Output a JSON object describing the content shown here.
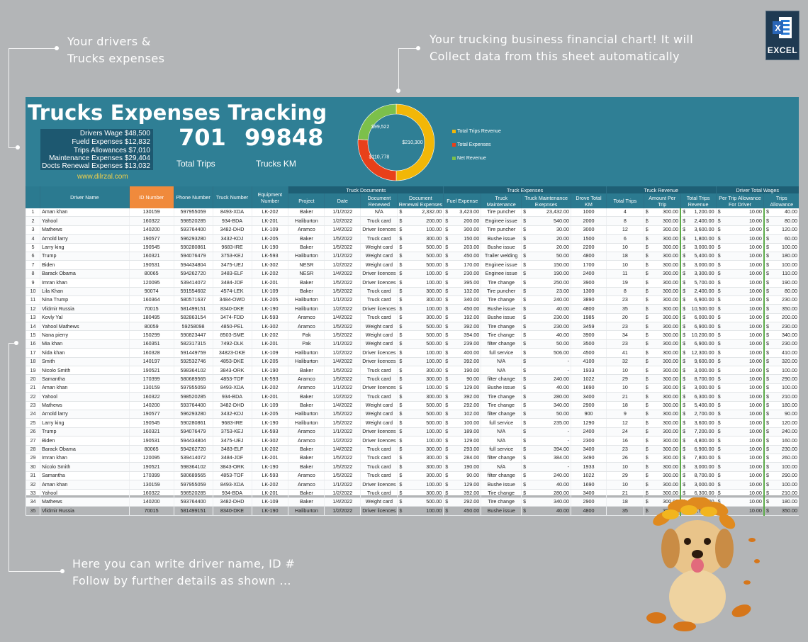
{
  "callouts": {
    "top_left": [
      "Your drivers &",
      "Trucks expenses"
    ],
    "top_middle": [
      "Your trucking business financial chart! It will",
      "Collect data from this sheet automatically"
    ],
    "bottom": [
      "Here you can write driver name, ID #",
      "Follow by further details as shown ..."
    ]
  },
  "excel_logo": {
    "label": "EXCEL"
  },
  "banner": {
    "title": "Trucks Expenses Tracking",
    "summary": [
      {
        "label": "Drivers Wage",
        "value": "$48,500"
      },
      {
        "label": "Fueld Expenses",
        "value": "$12,832"
      },
      {
        "label": "Trips Allowances",
        "value": "$7,010"
      },
      {
        "label": "Maintenance Expenses",
        "value": "$29,404"
      },
      {
        "label": "Docts Renewal Expenses",
        "value": "$13,032"
      }
    ],
    "site": "www.dilrzal.com",
    "total_trips": "701",
    "total_trips_label": "Total Trips",
    "trucks_km": "99848",
    "trucks_km_label": "Trucks KM"
  },
  "chart_data": {
    "type": "pie",
    "donut": true,
    "categories": [
      "Total Trips Revenue",
      "Total Expenses",
      "Net Revenue"
    ],
    "values": [
      210300,
      110778,
      99522
    ],
    "data_labels": [
      "$210,300",
      "$110,778",
      "$99,522"
    ],
    "colors": [
      "#f2b707",
      "#e8401a",
      "#7cc04b"
    ],
    "legend_position": "right"
  },
  "table": {
    "groups": [
      "Truck Documents",
      "Truck Expenses",
      "Truck Revenue",
      "Driver Total Wages"
    ],
    "headers": [
      "",
      "Driver Name",
      "ID Number",
      "Phone Number",
      "Truck Number",
      "Equipment Number",
      "Project",
      "Date",
      "Document Renewed",
      "Document Renewal Expenses",
      "Fuel Expense",
      "Truck Maintenance",
      "Truck Maintenance Exepnses",
      "Drove Total KM",
      "Total Trips",
      "Amount Per Trip",
      "Total Trips Revenue",
      "Per Trip Allowance For Driver",
      "Trips Allowance"
    ],
    "rows": [
      [
        "1",
        "Aman khan",
        "130159",
        "597955059",
        "8493-XDA",
        "LK-202",
        "Baker",
        "1/1/2022",
        "N/A",
        "2,332.00",
        "3,423.00",
        "Tire puncher",
        "23,432.00",
        "1000",
        "4",
        "300.00",
        "1,200.00",
        "10.00",
        "40.00"
      ],
      [
        "2",
        "Yahool",
        "160322",
        "598520285",
        "934-BDA",
        "LK-201",
        "Haliburton",
        "1/2/2022",
        "Truck card",
        "200.00",
        "200.00",
        "Enginee issue",
        "540.00",
        "2000",
        "8",
        "300.00",
        "2,400.00",
        "10.00",
        "80.00"
      ],
      [
        "3",
        "Mathews",
        "140200",
        "593764400",
        "3482-DHD",
        "LK-109",
        "Aramco",
        "1/4/2022",
        "Driver licences",
        "100.00",
        "300.00",
        "Tire puncher",
        "30.00",
        "3000",
        "12",
        "300.00",
        "3,600.00",
        "10.00",
        "120.00"
      ],
      [
        "4",
        "Arnold larry",
        "190577",
        "596293280",
        "3432-KDJ",
        "LK-205",
        "Baker",
        "1/5/2022",
        "Truck card",
        "300.00",
        "150.00",
        "Bushe issue",
        "20.00",
        "1500",
        "6",
        "300.00",
        "1,800.00",
        "10.00",
        "60.00"
      ],
      [
        "5",
        "Larry king",
        "190545",
        "590280861",
        "9683-IRE",
        "LK-190",
        "Baker",
        "1/5/2022",
        "Weight card",
        "500.00",
        "203.00",
        "Bushe issue",
        "20.00",
        "2200",
        "10",
        "300.00",
        "3,000.00",
        "10.00",
        "100.00"
      ],
      [
        "6",
        "Trump",
        "160321",
        "594076479",
        "3753-KEJ",
        "LK-593",
        "Haliburton",
        "1/1/2022",
        "Weight card",
        "500.00",
        "450.00",
        "Trailer welding",
        "50.00",
        "4800",
        "18",
        "300.00",
        "5,400.00",
        "10.00",
        "180.00"
      ],
      [
        "7",
        "Biden",
        "190531",
        "594434804",
        "3475-UEJ",
        "LK-302",
        "NESR",
        "1/2/2022",
        "Weight card",
        "500.00",
        "170.00",
        "Enginee issue",
        "150.00",
        "1700",
        "10",
        "300.00",
        "3,000.00",
        "10.00",
        "100.00"
      ],
      [
        "8",
        "Barack Obama",
        "80065",
        "594262720",
        "3483-ELF",
        "LK-202",
        "NESR",
        "1/4/2022",
        "Driver licences",
        "100.00",
        "230.00",
        "Enginee issue",
        "190.00",
        "2400",
        "11",
        "300.00",
        "3,300.00",
        "10.00",
        "110.00"
      ],
      [
        "9",
        "Imran khan",
        "120095",
        "539414072",
        "3484-JDF",
        "LK-201",
        "Baker",
        "1/5/2022",
        "Driver licences",
        "100.00",
        "395.00",
        "Tire change",
        "250.00",
        "3900",
        "19",
        "300.00",
        "5,700.00",
        "10.00",
        "190.00"
      ],
      [
        "10",
        "Lila Khan",
        "90074",
        "591554602",
        "4574-LEK",
        "LK-109",
        "Baker",
        "1/5/2022",
        "Truck card",
        "300.00",
        "132.00",
        "Tire puncher",
        "23.00",
        "1300",
        "8",
        "300.00",
        "2,400.00",
        "10.00",
        "80.00"
      ],
      [
        "11",
        "Nina Trump",
        "160364",
        "580571637",
        "3484-OWD",
        "LK-205",
        "Haliburton",
        "1/1/2022",
        "Truck card",
        "300.00",
        "340.00",
        "Tire change",
        "240.00",
        "3890",
        "23",
        "300.00",
        "6,900.00",
        "10.00",
        "230.00"
      ],
      [
        "12",
        "Vlidmir Russia",
        "70015",
        "581499151",
        "8340-DKE",
        "LK-190",
        "Haliburton",
        "1/2/2022",
        "Driver licences",
        "100.00",
        "450.00",
        "Bushe issue",
        "40.00",
        "4800",
        "35",
        "300.00",
        "10,500.00",
        "10.00",
        "350.00"
      ],
      [
        "13",
        "Kovly Yal",
        "180495",
        "582863154",
        "3474-FDD",
        "LK-593",
        "Aramco",
        "1/4/2022",
        "Truck card",
        "300.00",
        "192.00",
        "Bushe issue",
        "230.00",
        "1985",
        "20",
        "300.00",
        "6,000.00",
        "10.00",
        "200.00"
      ],
      [
        "14",
        "Yahool Mathews",
        "80059",
        "59258098",
        "4850-PEL",
        "LK-302",
        "Aramco",
        "1/5/2022",
        "Weight card",
        "500.00",
        "392.00",
        "Tire change",
        "230.00",
        "3459",
        "23",
        "300.00",
        "6,900.00",
        "10.00",
        "230.00"
      ],
      [
        "15",
        "Nana pierry",
        "150299",
        "590823447",
        "8503-SME",
        "LK-202",
        "Pak",
        "1/5/2022",
        "Weight card",
        "500.00",
        "394.00",
        "Tire change",
        "40.00",
        "3900",
        "34",
        "300.00",
        "10,200.00",
        "10.00",
        "340.00"
      ],
      [
        "16",
        "Mia khan",
        "160351",
        "582317315",
        "7492-DLK",
        "LK-201",
        "Pak",
        "1/1/2022",
        "Weight card",
        "500.00",
        "239.00",
        "filter change",
        "50.00",
        "3500",
        "23",
        "300.00",
        "6,900.00",
        "10.00",
        "230.00"
      ],
      [
        "17",
        "Nida khan",
        "160328",
        "591449759",
        "34823-DKE",
        "LK-109",
        "Haliburton",
        "1/2/2022",
        "Driver licences",
        "100.00",
        "400.00",
        "full service",
        "506.00",
        "4500",
        "41",
        "300.00",
        "12,300.00",
        "10.00",
        "410.00"
      ],
      [
        "18",
        "Smith",
        "140197",
        "592532746",
        "4853-DKE",
        "LK-205",
        "Haliburton",
        "1/4/2022",
        "Driver licences",
        "100.00",
        "392.00",
        "N/A",
        "-",
        "4100",
        "32",
        "300.00",
        "9,600.00",
        "10.00",
        "320.00"
      ],
      [
        "19",
        "Nicolo Smith",
        "190521",
        "598364102",
        "3843-ORK",
        "LK-190",
        "Baker",
        "1/5/2022",
        "Truck card",
        "300.00",
        "190.00",
        "N/A",
        "-",
        "1933",
        "10",
        "300.00",
        "3,000.00",
        "10.00",
        "100.00"
      ],
      [
        "20",
        "Samantha",
        "170399",
        "580689565",
        "4853-TOF",
        "LK-593",
        "Aramco",
        "1/5/2022",
        "Truck card",
        "300.00",
        "90.00",
        "filter change",
        "240.00",
        "1022",
        "29",
        "300.00",
        "8,700.00",
        "10.00",
        "290.00"
      ],
      [
        "21",
        "Aman khan",
        "130159",
        "597955059",
        "8493-XDA",
        "LK-202",
        "Aramco",
        "1/1/2022",
        "Driver licences",
        "100.00",
        "129.00",
        "Bushe issue",
        "40.00",
        "1690",
        "10",
        "300.00",
        "3,000.00",
        "10.00",
        "100.00"
      ],
      [
        "22",
        "Yahool",
        "160322",
        "598520285",
        "934-BDA",
        "LK-201",
        "Baker",
        "1/2/2022",
        "Truck card",
        "300.00",
        "392.00",
        "Tire change",
        "280.00",
        "3400",
        "21",
        "300.00",
        "6,300.00",
        "10.00",
        "210.00"
      ],
      [
        "23",
        "Mathews",
        "140200",
        "593764400",
        "3482-DHD",
        "LK-109",
        "Baker",
        "1/4/2022",
        "Weight card",
        "500.00",
        "292.00",
        "Tire change",
        "340.00",
        "2900",
        "18",
        "300.00",
        "5,400.00",
        "10.00",
        "180.00"
      ],
      [
        "24",
        "Arnold larry",
        "190577",
        "596293280",
        "3432-KDJ",
        "LK-205",
        "Haliburton",
        "1/5/2022",
        "Weight card",
        "500.00",
        "102.00",
        "filter change",
        "50.00",
        "900",
        "9",
        "300.00",
        "2,700.00",
        "10.00",
        "90.00"
      ],
      [
        "25",
        "Larry king",
        "190545",
        "590280861",
        "9683-IRE",
        "LK-190",
        "Haliburton",
        "1/5/2022",
        "Weight card",
        "500.00",
        "100.00",
        "full service",
        "235.00",
        "1290",
        "12",
        "300.00",
        "3,600.00",
        "10.00",
        "120.00"
      ],
      [
        "26",
        "Trump",
        "160321",
        "594076479",
        "3753-KEJ",
        "LK-593",
        "Aramco",
        "1/1/2022",
        "Driver licences",
        "100.00",
        "189.00",
        "N/A",
        "-",
        "2400",
        "24",
        "300.00",
        "7,200.00",
        "10.00",
        "240.00"
      ],
      [
        "27",
        "Biden",
        "190531",
        "594434804",
        "3475-UEJ",
        "LK-302",
        "Aramco",
        "1/2/2022",
        "Driver licences",
        "100.00",
        "129.00",
        "N/A",
        "-",
        "2300",
        "16",
        "300.00",
        "4,800.00",
        "10.00",
        "160.00"
      ],
      [
        "28",
        "Barack Obama",
        "80065",
        "594262720",
        "3483-ELF",
        "LK-202",
        "Baker",
        "1/4/2022",
        "Truck card",
        "300.00",
        "293.00",
        "full service",
        "394.00",
        "3400",
        "23",
        "300.00",
        "6,900.00",
        "10.00",
        "230.00"
      ],
      [
        "29",
        "Imran khan",
        "120095",
        "539414072",
        "3484-JDF",
        "LK-201",
        "Baker",
        "1/5/2022",
        "Truck card",
        "300.00",
        "284.00",
        "filter change",
        "384.00",
        "3490",
        "26",
        "300.00",
        "7,800.00",
        "10.00",
        "260.00"
      ],
      [
        "30",
        "Nicolo Smith",
        "190521",
        "598364102",
        "3843-ORK",
        "LK-190",
        "Baker",
        "1/5/2022",
        "Truck card",
        "300.00",
        "190.00",
        "N/A",
        "-",
        "1933",
        "10",
        "300.00",
        "3,000.00",
        "10.00",
        "100.00"
      ],
      [
        "31",
        "Samantha",
        "170399",
        "580689565",
        "4853-TOF",
        "LK-593",
        "Aramco",
        "1/5/2022",
        "Truck card",
        "300.00",
        "90.00",
        "filter change",
        "240.00",
        "1022",
        "29",
        "300.00",
        "8,700.00",
        "10.00",
        "290.00"
      ],
      [
        "32",
        "Aman khan",
        "130159",
        "597955059",
        "8493-XDA",
        "LK-202",
        "Aramco",
        "1/1/2022",
        "Driver licences",
        "100.00",
        "129.00",
        "Bushe issue",
        "40.00",
        "1690",
        "10",
        "300.00",
        "3,000.00",
        "10.00",
        "100.00"
      ],
      [
        "33",
        "Yahool",
        "160322",
        "598520285",
        "934-BDA",
        "LK-201",
        "Baker",
        "1/2/2022",
        "Truck card",
        "300.00",
        "392.00",
        "Tire change",
        "280.00",
        "3400",
        "21",
        "300.00",
        "6,300.00",
        "10.00",
        "210.00"
      ],
      [
        "34",
        "Mathews",
        "140200",
        "593764400",
        "3482-DHD",
        "LK-109",
        "Baker",
        "1/4/2022",
        "Weight card",
        "500.00",
        "292.00",
        "Tire change",
        "340.00",
        "2900",
        "18",
        "300.00",
        "5,400.00",
        "10.00",
        "180.00"
      ],
      [
        "35",
        "Vlidmir Russia",
        "70015",
        "581499151",
        "8340-DKE",
        "LK-190",
        "Haliburton",
        "1/2/2022",
        "Driver licences",
        "100.00",
        "450.00",
        "Bushe issue",
        "40.00",
        "4800",
        "35",
        "300.00",
        "10,500.00",
        "10.00",
        "350.00"
      ]
    ]
  }
}
